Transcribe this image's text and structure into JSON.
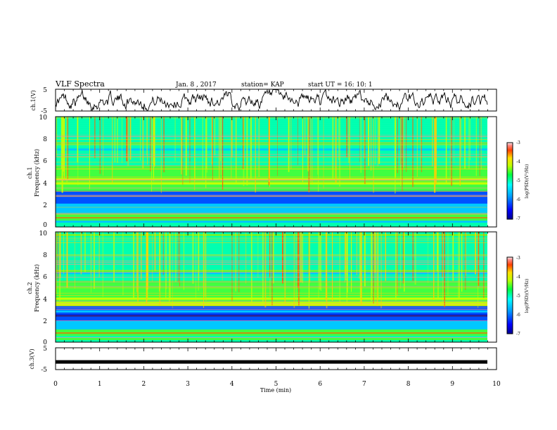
{
  "header": {
    "title": "VLF Spectra",
    "date": "Jan. 8 , 2017",
    "station": "station= KAP",
    "start": "start  UT =   16: 10: 1"
  },
  "chart_data": [
    {
      "type": "line",
      "name": "ch1-waveform",
      "ylabel": "ch.1(V)",
      "ylim": [
        -5,
        5
      ],
      "yticks": [
        "5",
        "-5"
      ],
      "xlim": [
        0,
        10
      ]
    },
    {
      "type": "heatmap",
      "name": "ch1-spectrogram",
      "ylabel_line1": "ch.1",
      "ylabel_line2": "Frequency  (kHz)",
      "ylim": [
        0,
        10
      ],
      "yticks": [
        "0",
        "2",
        "4",
        "6",
        "8",
        "10"
      ],
      "xlim": [
        0,
        9.8
      ],
      "colorbar": {
        "label": "log(PSD)(V²/Hz)",
        "range": [
          -7,
          -3
        ],
        "ticks": [
          "-3",
          "-4",
          "-5",
          "-6",
          "-7"
        ]
      }
    },
    {
      "type": "heatmap",
      "name": "ch2-spectrogram",
      "ylabel_line1": "ch.2",
      "ylabel_line2": "Frequency  (kHz)",
      "ylim": [
        0,
        10
      ],
      "yticks": [
        "0",
        "2",
        "4",
        "6",
        "8",
        "10"
      ],
      "xlim": [
        0,
        9.8
      ],
      "colorbar": {
        "label": "log(PSD)(V²/Hz)",
        "range": [
          -7,
          -3
        ],
        "ticks": [
          "-3",
          "-4",
          "-5",
          "-6",
          "-7"
        ]
      }
    },
    {
      "type": "line",
      "name": "ch3-waveform",
      "ylabel": "ch.3(V)",
      "ylim": [
        -5,
        5
      ],
      "yticks": [
        "5",
        "-5"
      ],
      "xlim": [
        0,
        10
      ],
      "level": -1.5
    }
  ],
  "xaxis": {
    "label": "Time  (min)",
    "ticks": [
      "0",
      "1",
      "2",
      "3",
      "4",
      "5",
      "6",
      "7",
      "8",
      "9",
      "10"
    ]
  },
  "colors": {
    "waveform": "#000000",
    "colormap": [
      "#0000b4",
      "#0050ff",
      "#00c8ff",
      "#00ffb0",
      "#40ff40",
      "#c8ff00",
      "#ffd000",
      "#ff6000",
      "#e00000",
      "#ffffff"
    ]
  }
}
